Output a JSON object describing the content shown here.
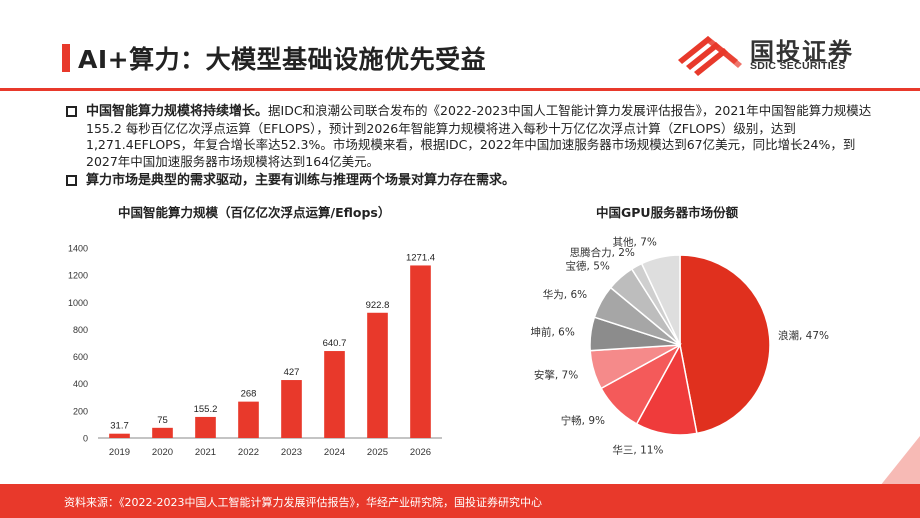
{
  "header": {
    "title": "AI+算力：大模型基础设施优先受益",
    "logo_cn": "国投证券",
    "logo_en": "SDIC SECURITIES"
  },
  "bullets": [
    {
      "bold": "中国智能算力规模将持续增长。",
      "text": "据IDC和浪潮公司联合发布的《2022-2023中国人工智能计算力发展评估报告》，2021年中国智能算力规模达155.2 每秒百亿亿次浮点运算（EFLOPS），预计到2026年智能算力规模将进入每秒十万亿亿次浮点计算（ZFLOPS）级别，达到1,271.4EFLOPS，年复合增长率达52.3%。市场规模来看，根据IDC，2022年中国加速服务器市场规模达到67亿美元，同比增长24%，到2027年中国加速服务器市场规模将达到164亿美元。"
    },
    {
      "bold": "算力市场是典型的需求驱动，主要有训练与推理两个场景对算力存在需求。",
      "text": ""
    }
  ],
  "footer": {
    "source": "资料来源：《2022-2023中国人工智能计算力发展评估报告》，华经产业研究院，国投证券研究中心"
  },
  "colors": {
    "accent": "#e8392b",
    "bar": "#e8392b"
  },
  "chart_data": [
    {
      "type": "bar",
      "title": "中国智能算力规模（百亿亿次浮点运算/Eflops）",
      "categories": [
        "2019",
        "2020",
        "2021",
        "2022",
        "2023",
        "2024",
        "2025",
        "2026"
      ],
      "values": [
        31.7,
        75,
        155.2,
        268,
        427,
        640.7,
        922.8,
        1271.4
      ],
      "value_labels": [
        "31.7",
        "75",
        "155.2",
        "268",
        "427",
        "640.7",
        "922.8",
        "1271.4"
      ],
      "yticks": [
        "0",
        "200",
        "400",
        "600",
        "800",
        "1000",
        "1200",
        "1400"
      ],
      "ylim": [
        0,
        1400
      ],
      "grid": false
    },
    {
      "type": "pie",
      "title": "中国GPU服务器市场份额",
      "slices": [
        {
          "label": "浪潮, 47%",
          "value": 47,
          "color": "#e0301e"
        },
        {
          "label": "华三, 11%",
          "value": 11,
          "color": "#ef3b3b"
        },
        {
          "label": "宁畅, 9%",
          "value": 9,
          "color": "#f45a5a"
        },
        {
          "label": "安擎, 7%",
          "value": 7,
          "color": "#f58a8a"
        },
        {
          "label": "坤前, 6%",
          "value": 6,
          "color": "#8c8c8c"
        },
        {
          "label": "华为, 6%",
          "value": 6,
          "color": "#a6a6a6"
        },
        {
          "label": "宝德, 5%",
          "value": 5,
          "color": "#bdbdbd"
        },
        {
          "label": "思腾合力, 2%",
          "value": 2,
          "color": "#cfcfcf"
        },
        {
          "label": "其他, 7%",
          "value": 7,
          "color": "#dedede"
        }
      ]
    }
  ]
}
